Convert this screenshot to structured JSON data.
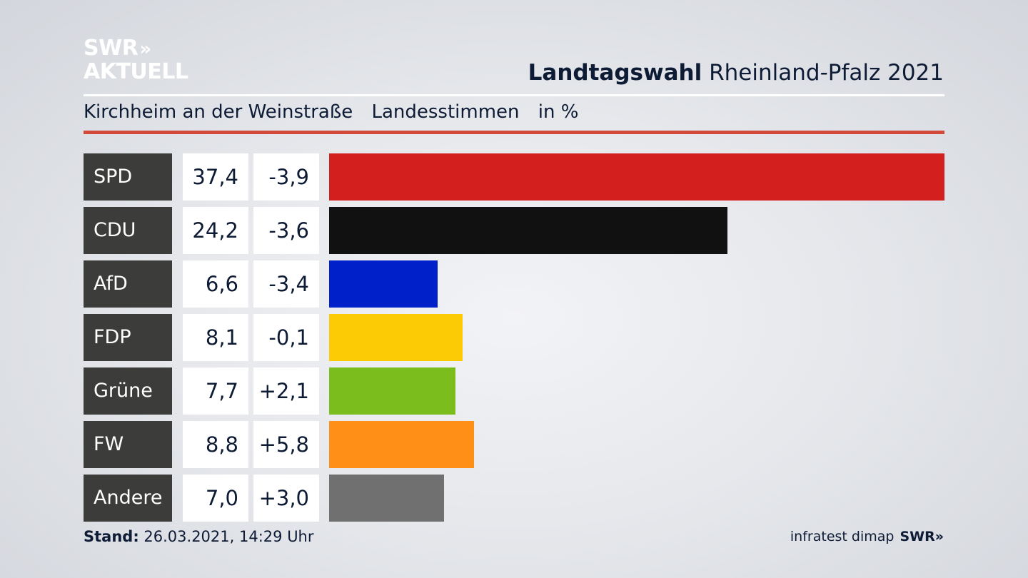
{
  "header": {
    "logo_line1": "SWR",
    "logo_chevrons": "»",
    "logo_line2": "AKTUELL",
    "title_bold": "Landtagswahl",
    "title_regular": "Rheinland-Pfalz 2021",
    "subtitle_place": "Kirchheim an der Weinstraße",
    "subtitle_vote": "Landesstimmen",
    "subtitle_unit": "in %"
  },
  "chart_data": {
    "type": "bar",
    "categories": [
      "SPD",
      "CDU",
      "AfD",
      "FDP",
      "Grüne",
      "FW",
      "Andere"
    ],
    "values": [
      37.4,
      24.2,
      6.6,
      8.1,
      7.7,
      8.8,
      7.0
    ],
    "value_labels": [
      "37,4",
      "24,2",
      "6,6",
      "8,1",
      "7,7",
      "8,8",
      "7,0"
    ],
    "changes": [
      -3.9,
      -3.6,
      -3.4,
      -0.1,
      2.1,
      5.8,
      3.0
    ],
    "change_labels": [
      "-3,9",
      "-3,6",
      "-3,4",
      "-0,1",
      "+2,1",
      "+5,8",
      "+3,0"
    ],
    "colors": [
      "#d41f1f",
      "#111111",
      "#0021c9",
      "#fdcb06",
      "#7bbd1c",
      "#ff8f17",
      "#707070"
    ],
    "orientation": "horizontal",
    "xlim": [
      0,
      37.4
    ],
    "grid": false
  },
  "footer": {
    "stand_label": "Stand:",
    "stand_value": "26.03.2021, 14:29 Uhr",
    "source": "infratest dimap",
    "swr": "SWR»"
  }
}
